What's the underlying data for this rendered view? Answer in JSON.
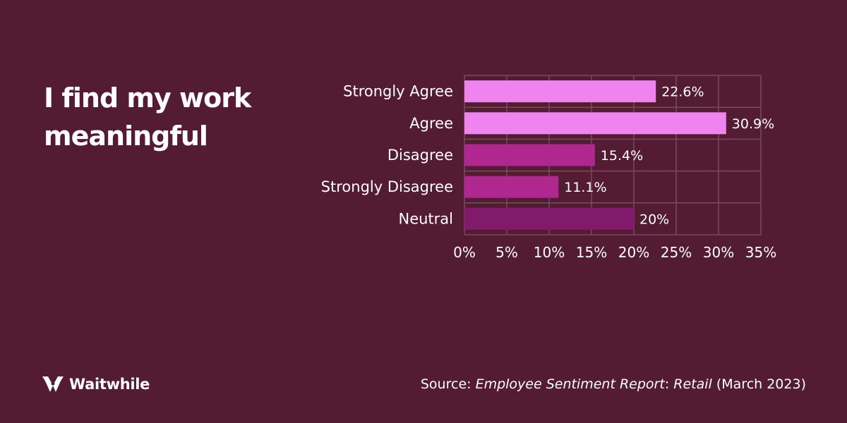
{
  "brand": {
    "name": "Waitwhile"
  },
  "source": {
    "prefix": "Source: ",
    "report": "Employee Sentiment Report",
    "sep": ": ",
    "sector": "Retail",
    "date": " (March 2023)"
  },
  "chart_data": {
    "type": "bar",
    "orientation": "horizontal",
    "title": "I find my work meaningful",
    "categories": [
      "Strongly Agree",
      "Agree",
      "Disagree",
      "Strongly Disagree",
      "Neutral"
    ],
    "values": [
      22.6,
      30.9,
      15.4,
      11.1,
      20
    ],
    "value_labels": [
      "22.6%",
      "30.9%",
      "15.4%",
      "11.1%",
      "20%"
    ],
    "bar_colors": [
      "#ef84ef",
      "#ef84ef",
      "#b0288f",
      "#b0288f",
      "#821a6c"
    ],
    "xlim": [
      0,
      35
    ],
    "x_ticks": [
      0,
      5,
      10,
      15,
      20,
      25,
      30,
      35
    ],
    "x_tick_labels": [
      "0%",
      "5%",
      "10%",
      "15%",
      "20%",
      "25%",
      "30%",
      "35%"
    ],
    "grid": true,
    "legend": "none"
  }
}
